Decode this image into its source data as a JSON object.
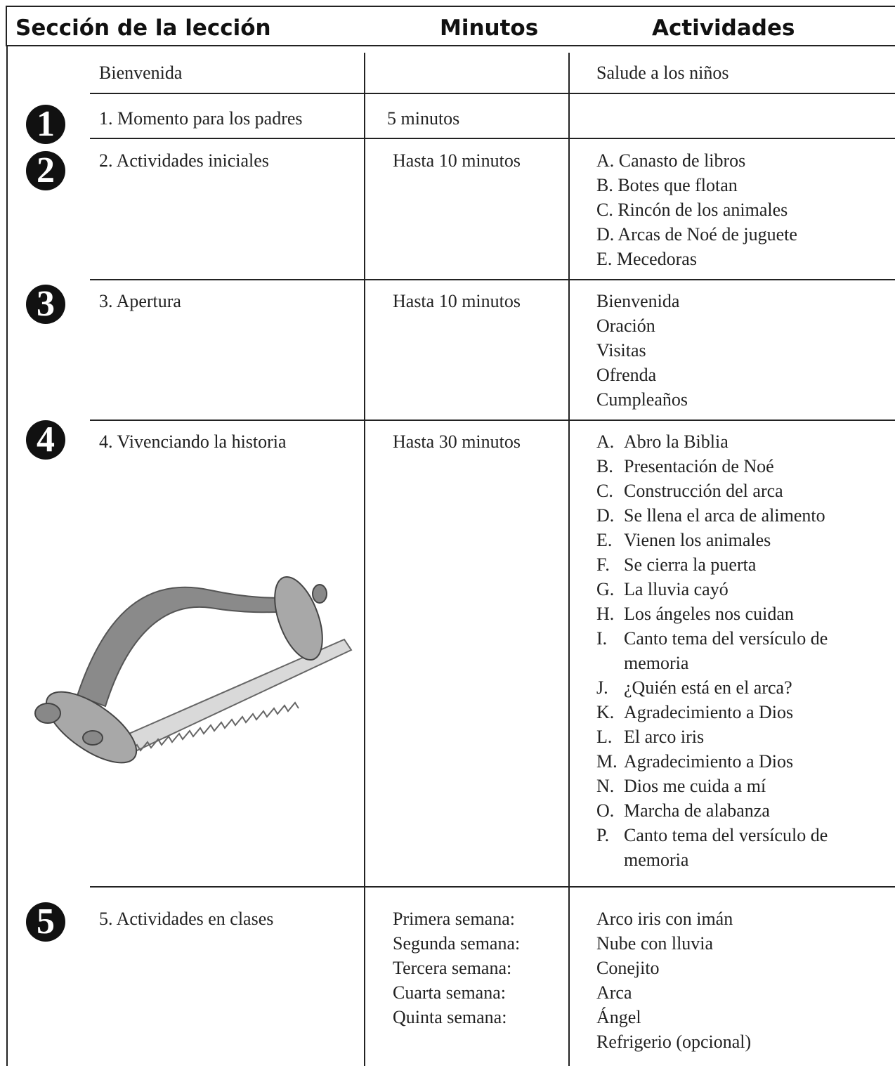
{
  "header": {
    "columns": [
      "Sección de la lección",
      "Minutos",
      "Actividades"
    ]
  },
  "rows": [
    {
      "section": "Bienvenida",
      "activities": [
        {
          "text": "Salude a los niños"
        }
      ]
    },
    {
      "badge": "1",
      "section": "1. Momento para los padres",
      "minutes": [
        "5 minutos"
      ]
    },
    {
      "badge": "2",
      "section": "2. Actividades iniciales",
      "minutes": [
        "Hasta 10 minutos"
      ],
      "activities": [
        {
          "text": "A. Canasto de libros"
        },
        {
          "text": "B. Botes que flotan"
        },
        {
          "text": "C. Rincón de los animales"
        },
        {
          "text": "D. Arcas de Noé de juguete"
        },
        {
          "text": "E. Mecedoras"
        }
      ]
    },
    {
      "badge": "3",
      "section": "3. Apertura",
      "minutes": [
        "Hasta 10 minutos"
      ],
      "activities": [
        {
          "text": "Bienvenida"
        },
        {
          "text": "Oración"
        },
        {
          "text": "Visitas"
        },
        {
          "text": "Ofrenda"
        },
        {
          "text": "Cumpleaños"
        }
      ]
    },
    {
      "badge": "4",
      "section": "4. Vivenciando la historia",
      "minutes": [
        "Hasta 30 minutos"
      ],
      "activities": [
        {
          "letter": "A.",
          "text": "Abro la Biblia"
        },
        {
          "letter": "B.",
          "text": "Presentación de Noé"
        },
        {
          "letter": "C.",
          "text": "Construcción del arca"
        },
        {
          "letter": "D.",
          "text": "Se llena el arca de alimento"
        },
        {
          "letter": "E.",
          "text": "Vienen los animales"
        },
        {
          "letter": "F.",
          "text": "Se cierra la puerta"
        },
        {
          "letter": "G.",
          "text": "La lluvia cayó"
        },
        {
          "letter": "H.",
          "text": "Los ángeles nos cuidan"
        },
        {
          "letter": "I.",
          "text": "Canto tema del versículo de memoria"
        },
        {
          "letter": "J.",
          "text": "¿Quién está en el arca?"
        },
        {
          "letter": "K.",
          "text": "Agradecimiento a Dios"
        },
        {
          "letter": "L.",
          "text": "El arco iris"
        },
        {
          "letter": "M.",
          "text": "Agradecimiento a Dios"
        },
        {
          "letter": "N.",
          "text": "Dios me cuida a mí"
        },
        {
          "letter": "O.",
          "text": "Marcha de alabanza"
        },
        {
          "letter": "P.",
          "text": "Canto tema del versículo de memoria"
        }
      ]
    },
    {
      "badge": "5",
      "section": "5. Actividades en clases",
      "minutes": [
        "Primera semana:",
        "Segunda semana:",
        "Tercera semana:",
        "Cuarta semana:",
        "Quinta semana:"
      ],
      "activities": [
        {
          "text": "Arco iris con imán"
        },
        {
          "text": "Nube con lluvia"
        },
        {
          "text": "Conejito"
        },
        {
          "text": "Arca"
        },
        {
          "text": "Ángel"
        },
        {
          "text": "Refrigerio (opcional)"
        }
      ]
    }
  ]
}
